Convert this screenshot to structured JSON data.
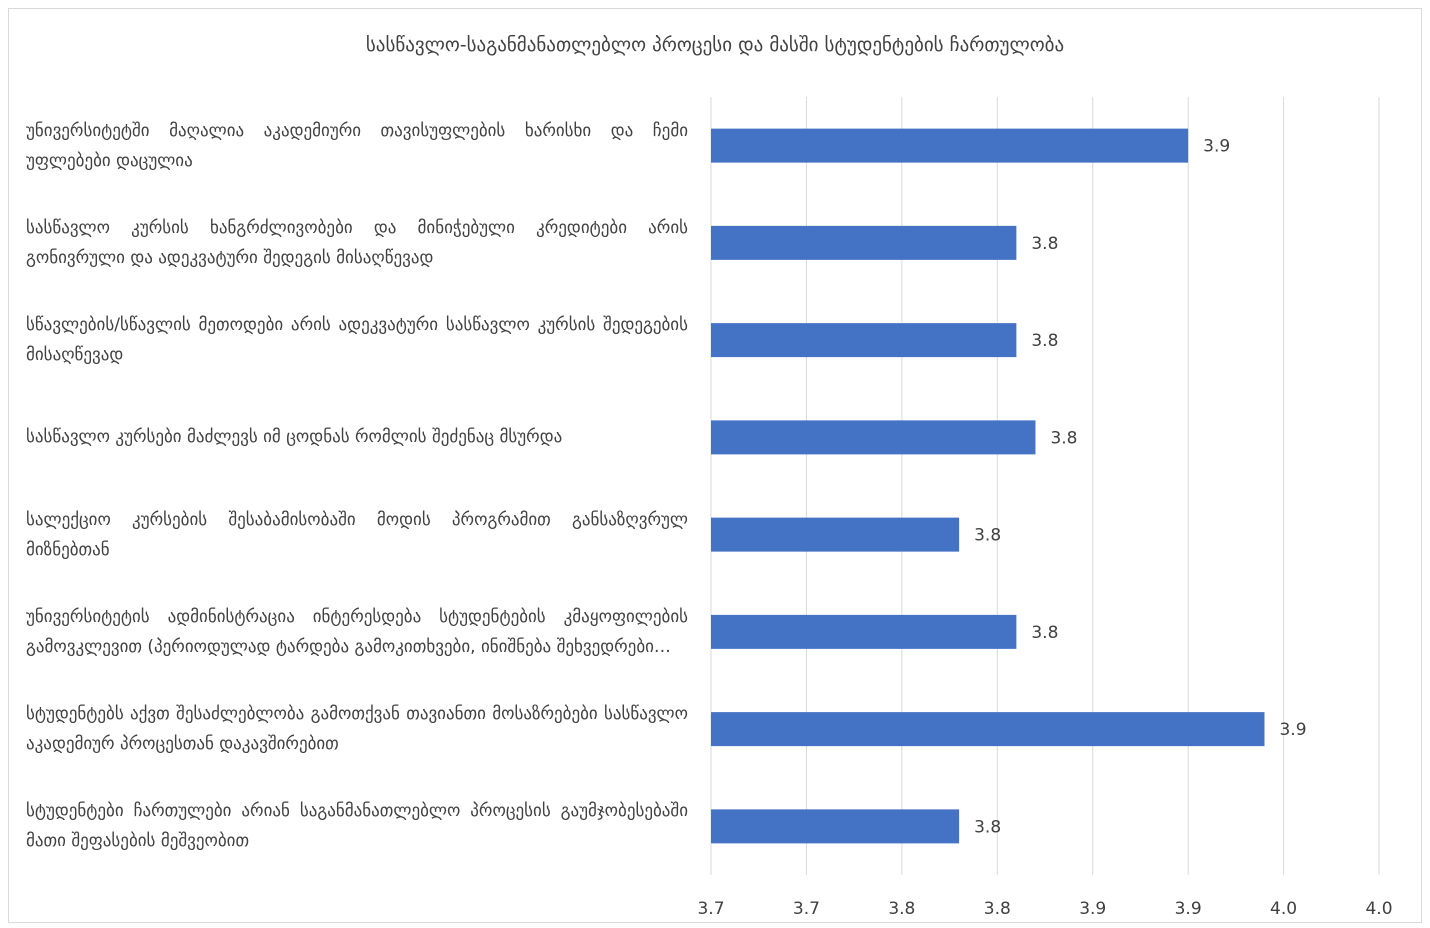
{
  "chart_data": {
    "type": "bar",
    "orientation": "horizontal",
    "title": "სასწავლო-საგანმანათლებლო პროცესი და მასში სტუდენტების ჩართულობა",
    "categories": [
      "უნივერსიტეტში მაღალია აკადემიური თავისუფლების ხარისხი და ჩემი უფლებები დაცულია",
      "სასწავლო კურსის ხანგრძლივობები და მინიჭებული კრედიტები არის გონივრული და ადეკვატური შედეგის მისაღწევად",
      "სწავლების/სწავლის მეთოდები არის ადეკვატური სასწავლო კურსის შედეგების მისაღწევად",
      "სასწავლო კურსები მაძლევს იმ ცოდნას რომლის შეძენაც მსურდა",
      "სალექციო კურსების შესაბამისობაში მოდის პროგრამით განსაზღვრულ მიზნებთან",
      "უნივერსიტეტის ადმინისტრაცია ინტერესდება სტუდენტების კმაყოფილების გამოვკლევით (პერიოდულად ტარდება გამოკითხვები, ინიშნება შეხვედრები…",
      "სტუდენტებს აქვთ შესაძლებლობა გამოთქვან თავიანთი მოსაზრებები სასწავლო აკადემიურ პროცესთან დაკავშირებით",
      "სტუდენტები ჩართულები არიან საგანმანათლებლო პროცესის გაუმჯობესებაში მათი შეფასების მეშვეობით"
    ],
    "values": [
      3.9,
      3.81,
      3.81,
      3.82,
      3.78,
      3.81,
      3.94,
      3.78
    ],
    "data_labels": [
      "3.9",
      "3.8",
      "3.8",
      "3.8",
      "3.8",
      "3.8",
      "3.9",
      "3.8"
    ],
    "xlim": [
      3.65,
      4.0
    ],
    "x_ticks": [
      3.65,
      3.7,
      3.75,
      3.8,
      3.85,
      3.9,
      3.95,
      4.0
    ],
    "x_tick_labels": [
      "3.7",
      "3.7",
      "3.8",
      "3.8",
      "3.9",
      "3.9",
      "4.0",
      "4.0"
    ],
    "grid": true,
    "legend": "none",
    "bar_color": "#4472c4",
    "grid_color": "#d9d9d9"
  }
}
